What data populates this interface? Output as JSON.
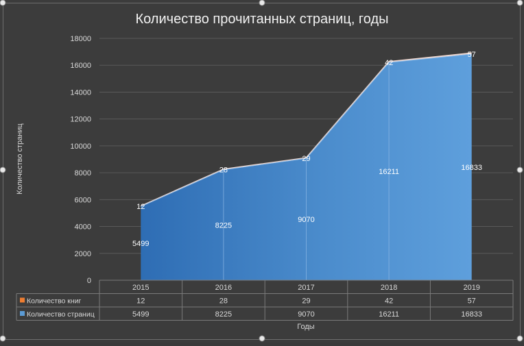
{
  "chart_data": {
    "type": "area",
    "title": "Количество прочитанных страниц, годы",
    "xlabel": "Годы",
    "ylabel": "Количество страниц",
    "categories": [
      "2015",
      "2016",
      "2017",
      "2018",
      "2019"
    ],
    "ylim": [
      0,
      18000
    ],
    "yticks": [
      "0",
      "2000",
      "4000",
      "6000",
      "8000",
      "10000",
      "12000",
      "14000",
      "16000",
      "18000"
    ],
    "grid": true,
    "series": [
      {
        "name": "Количество книг",
        "values": [
          12,
          28,
          29,
          42,
          57
        ],
        "labels": [
          "12",
          "28",
          "29",
          "42",
          "57"
        ],
        "color": "#ed7d31"
      },
      {
        "name": "Количество страниц",
        "values": [
          5499,
          8225,
          9070,
          16211,
          16833
        ],
        "labels": [
          "5499",
          "8225",
          "9070",
          "16211",
          "16833"
        ],
        "color": "#5b9bd5"
      }
    ],
    "data_table": true
  },
  "colors": {
    "background": "#3c3c3c",
    "area_dark": "#2e6db4",
    "area_light": "#5e9fdc",
    "grid": "#5a5a5a",
    "text": "#d9d9d9",
    "title": "#f2f2f2"
  }
}
